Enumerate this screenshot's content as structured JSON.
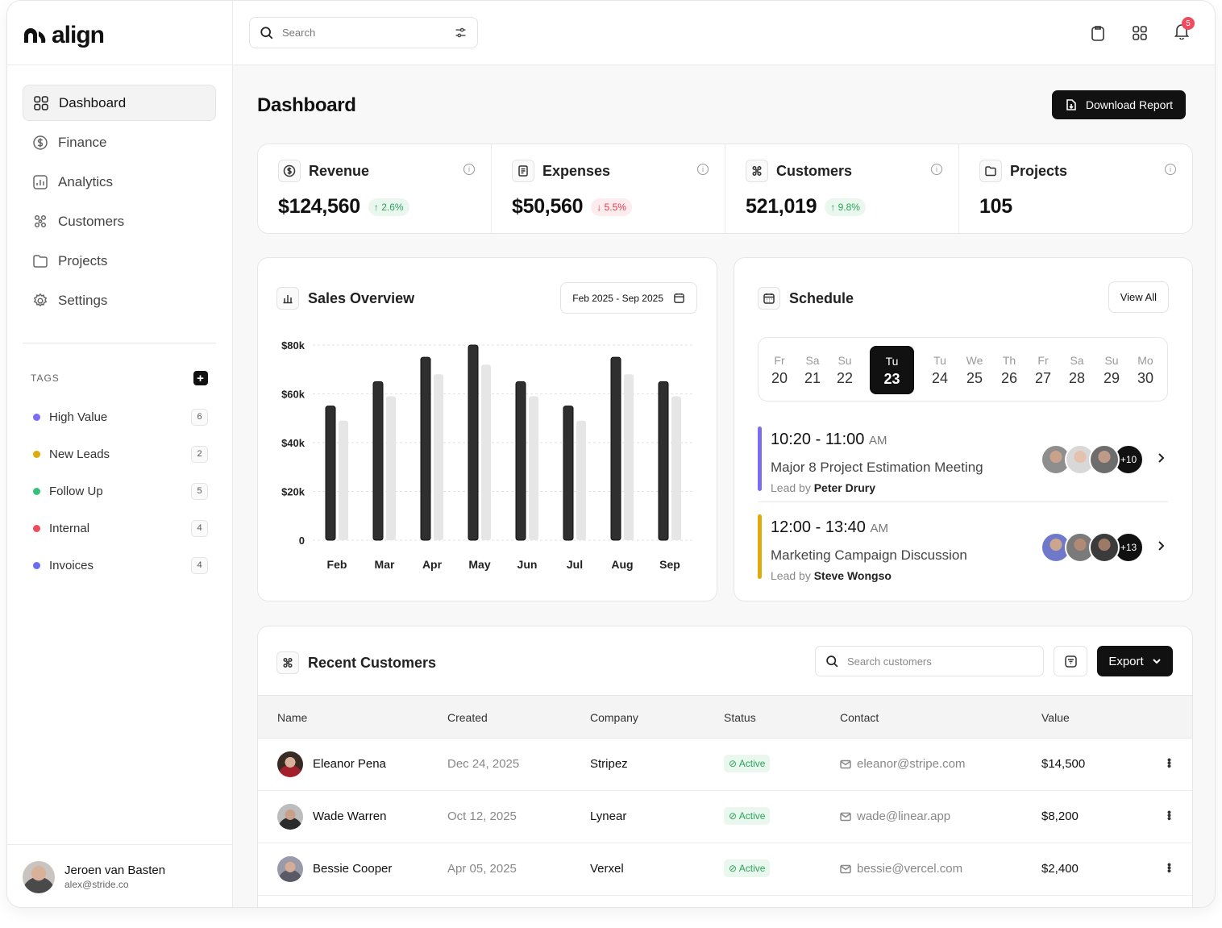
{
  "app": {
    "name": "align"
  },
  "search": {
    "placeholder": "Search"
  },
  "notifications": {
    "count": "5"
  },
  "sidebar": {
    "items": [
      {
        "label": "Dashboard",
        "icon": "grid-icon",
        "active": true
      },
      {
        "label": "Finance",
        "icon": "dollar-icon"
      },
      {
        "label": "Analytics",
        "icon": "chart-icon"
      },
      {
        "label": "Customers",
        "icon": "users-icon"
      },
      {
        "label": "Projects",
        "icon": "folder-icon"
      },
      {
        "label": "Settings",
        "icon": "gear-icon"
      }
    ],
    "tags_title": "TAGS",
    "tags": [
      {
        "label": "High Value",
        "count": "6",
        "color": "#7b6cf6"
      },
      {
        "label": "New Leads",
        "count": "2",
        "color": "#e0a90c"
      },
      {
        "label": "Follow Up",
        "count": "5",
        "color": "#34c27a"
      },
      {
        "label": "Internal",
        "count": "4",
        "color": "#ef4a5d"
      },
      {
        "label": "Invoices",
        "count": "4",
        "color": "#6c6cf0"
      }
    ],
    "user": {
      "name": "Jeroen van Basten",
      "email": "alex@stride.co"
    }
  },
  "page": {
    "title": "Dashboard",
    "download_label": "Download Report"
  },
  "stats": [
    {
      "label": "Revenue",
      "value": "$124,560",
      "delta": "2.6%",
      "direction": "up"
    },
    {
      "label": "Expenses",
      "value": "$50,560",
      "delta": "5.5%",
      "direction": "down"
    },
    {
      "label": "Customers",
      "value": "521,019",
      "delta": "9.8%",
      "direction": "up"
    },
    {
      "label": "Projects",
      "value": "105"
    }
  ],
  "sales": {
    "title": "Sales Overview",
    "range": "Feb 2025 - Sep 2025"
  },
  "chart_data": {
    "type": "bar",
    "categories": [
      "Feb",
      "Mar",
      "Apr",
      "May",
      "Jun",
      "Jul",
      "Aug",
      "Sep"
    ],
    "series": [
      {
        "values": [
          55000,
          65000,
          75000,
          80000,
          65000,
          55000,
          75000,
          65000
        ],
        "color": "#2f2f2f"
      },
      {
        "values": [
          49000,
          59000,
          68000,
          72000,
          59000,
          49000,
          68000,
          59000
        ],
        "color": "#e6e6e6"
      }
    ],
    "yticks": [
      "$80k",
      "$60k",
      "$40k",
      "$20k",
      "0"
    ],
    "ylim": [
      0,
      80000
    ],
    "grid": true
  },
  "schedule": {
    "title": "Schedule",
    "view_all": "View All",
    "days": [
      {
        "name": "Fr",
        "num": "20"
      },
      {
        "name": "Sa",
        "num": "21"
      },
      {
        "name": "Su",
        "num": "22"
      },
      {
        "name": "Tu",
        "num": "23",
        "selected": true
      },
      {
        "name": "Tu",
        "num": "24"
      },
      {
        "name": "We",
        "num": "25"
      },
      {
        "name": "Th",
        "num": "26"
      },
      {
        "name": "Fr",
        "num": "27"
      },
      {
        "name": "Sa",
        "num": "28"
      },
      {
        "name": "Su",
        "num": "29"
      },
      {
        "name": "Mo",
        "num": "30"
      }
    ],
    "events": [
      {
        "time": "10:20 - 11:00",
        "ampm": "AM",
        "title": "Major 8 Project Estimation Meeting",
        "lead_prefix": "Lead by",
        "lead": "Peter Drury",
        "more": "+10",
        "color": "#7b6cf6"
      },
      {
        "time": "12:00 - 13:40",
        "ampm": "AM",
        "title": "Marketing Campaign Discussion",
        "lead_prefix": "Lead by",
        "lead": "Steve Wongso",
        "more": "+13",
        "color": "#e0a90c"
      }
    ]
  },
  "customers": {
    "title": "Recent Customers",
    "search_placeholder": "Search customers",
    "export_label": "Export",
    "columns": [
      "Name",
      "Created",
      "Company",
      "Status",
      "Contact",
      "Value"
    ],
    "rows": [
      {
        "name": "Eleanor Pena",
        "created": "Dec 24, 2025",
        "company": "Stripez",
        "status": "Active",
        "contact": "eleanor@stripe.com",
        "value": "$14,500"
      },
      {
        "name": "Wade Warren",
        "created": "Oct 12, 2025",
        "company": "Lynear",
        "status": "Active",
        "contact": "wade@linear.app",
        "value": "$8,200"
      },
      {
        "name": "Bessie Cooper",
        "created": "Apr 05, 2025",
        "company": "Verxel",
        "status": "Active",
        "contact": "bessie@vercel.com",
        "value": "$2,400"
      }
    ]
  }
}
